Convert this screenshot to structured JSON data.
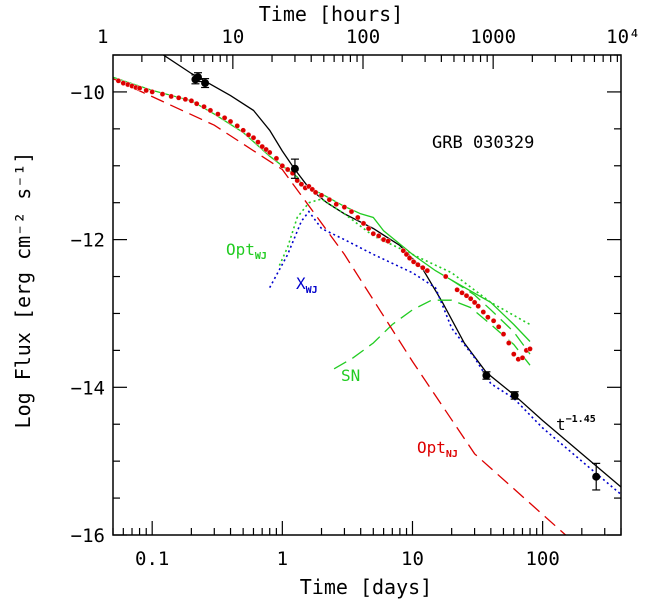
{
  "chart_data": {
    "type": "scatter",
    "annotation_title": "GRB 030329",
    "xlabel": "Time [days]",
    "x2label": "Time [hours]",
    "ylabel": "Log Flux [erg cm⁻² s⁻¹]",
    "x_scale": "log",
    "xlim": [
      0.05,
      400
    ],
    "ylim": [
      -16,
      -9.5
    ],
    "x_tick_labels": [
      {
        "value": 0.1,
        "label": "0.1"
      },
      {
        "value": 1,
        "label": "1"
      },
      {
        "value": 10,
        "label": "10"
      },
      {
        "value": 100,
        "label": "100"
      }
    ],
    "x2_tick_labels": [
      {
        "value": 1,
        "label": "1"
      },
      {
        "value": 10,
        "label": "10"
      },
      {
        "value": 100,
        "label": "100"
      },
      {
        "value": 1000,
        "label": "1000"
      },
      {
        "value": 10000,
        "label": "10⁴"
      }
    ],
    "y_tick_labels": [
      {
        "value": -10,
        "label": "−10"
      },
      {
        "value": -12,
        "label": "−12"
      },
      {
        "value": -14,
        "label": "−14"
      },
      {
        "value": -16,
        "label": "−16"
      }
    ],
    "labels": {
      "opt_wj": {
        "main": "Opt",
        "sub": "WJ",
        "color": "#22cc22"
      },
      "x_wj": {
        "main": "X",
        "sub": "WJ",
        "color": "#0000cc"
      },
      "sn": {
        "main": "SN",
        "sub": "",
        "color": "#22cc22"
      },
      "opt_nj": {
        "main": "Opt",
        "sub": "NJ",
        "color": "#dd0000"
      },
      "power_law": {
        "main": "t",
        "sup": "−1.45",
        "color": "#000000"
      }
    },
    "series": [
      {
        "kind": "xray_points",
        "color": "#000000",
        "points": [
          {
            "x": 0.215,
            "y": -9.83,
            "err": 0.06
          },
          {
            "x": 0.225,
            "y": -9.8,
            "err": 0.06
          },
          {
            "x": 0.255,
            "y": -9.88,
            "err": 0.06
          },
          {
            "x": 1.25,
            "y": -11.04,
            "err": 0.13
          },
          {
            "x": 37,
            "y": -13.84,
            "err": 0.05
          },
          {
            "x": 61,
            "y": -14.11,
            "err": 0.05
          },
          {
            "x": 258,
            "y": -15.21,
            "err": 0.18
          }
        ]
      },
      {
        "kind": "xray_model",
        "color": "#000000",
        "style": "solid",
        "points": [
          [
            0.115,
            -9.47
          ],
          [
            0.2,
            -9.75
          ],
          [
            0.4,
            -10.05
          ],
          [
            0.6,
            -10.25
          ],
          [
            0.8,
            -10.52
          ],
          [
            1.0,
            -10.8
          ],
          [
            1.25,
            -11.05
          ],
          [
            1.6,
            -11.3
          ],
          [
            2.2,
            -11.5
          ],
          [
            3.0,
            -11.65
          ],
          [
            5,
            -11.85
          ],
          [
            8,
            -12.08
          ],
          [
            12,
            -12.4
          ],
          [
            17,
            -12.85
          ],
          [
            25,
            -13.4
          ],
          [
            37,
            -13.8
          ],
          [
            60,
            -14.1
          ],
          [
            100,
            -14.45
          ],
          [
            200,
            -14.9
          ],
          [
            400,
            -15.35
          ]
        ]
      },
      {
        "kind": "optical_model",
        "color": "#22cc22",
        "style": "solid",
        "points": [
          [
            0.05,
            -9.8
          ],
          [
            0.1,
            -9.98
          ],
          [
            0.2,
            -10.12
          ],
          [
            0.3,
            -10.3
          ],
          [
            0.5,
            -10.55
          ],
          [
            0.8,
            -10.87
          ],
          [
            1.0,
            -11.0
          ],
          [
            1.3,
            -11.15
          ],
          [
            1.5,
            -11.32
          ],
          [
            1.6,
            -11.3
          ],
          [
            2.0,
            -11.38
          ],
          [
            3.0,
            -11.55
          ],
          [
            4.0,
            -11.65
          ],
          [
            5,
            -11.7
          ],
          [
            6,
            -11.88
          ],
          [
            10,
            -12.2
          ],
          [
            15,
            -12.42
          ],
          [
            20,
            -12.55
          ],
          [
            40,
            -12.85
          ],
          [
            60,
            -13.15
          ],
          [
            80,
            -13.38
          ]
        ]
      },
      {
        "kind": "optical_points",
        "color": "#dd0000",
        "points": [
          [
            0.055,
            -9.85
          ],
          [
            0.06,
            -9.88
          ],
          [
            0.065,
            -9.9
          ],
          [
            0.07,
            -9.92
          ],
          [
            0.075,
            -9.94
          ],
          [
            0.08,
            -9.95
          ],
          [
            0.09,
            -9.98
          ],
          [
            0.1,
            -10.0
          ],
          [
            0.12,
            -10.03
          ],
          [
            0.14,
            -10.06
          ],
          [
            0.16,
            -10.08
          ],
          [
            0.18,
            -10.1
          ],
          [
            0.2,
            -10.12
          ],
          [
            0.22,
            -10.16
          ],
          [
            0.25,
            -10.2
          ],
          [
            0.28,
            -10.25
          ],
          [
            0.32,
            -10.3
          ],
          [
            0.36,
            -10.35
          ],
          [
            0.4,
            -10.4
          ],
          [
            0.45,
            -10.46
          ],
          [
            0.5,
            -10.52
          ],
          [
            0.55,
            -10.58
          ],
          [
            0.6,
            -10.62
          ],
          [
            0.65,
            -10.68
          ],
          [
            0.7,
            -10.74
          ],
          [
            0.75,
            -10.78
          ],
          [
            0.8,
            -10.82
          ],
          [
            0.9,
            -10.9
          ],
          [
            1.0,
            -11.0
          ],
          [
            1.1,
            -11.05
          ],
          [
            1.2,
            -11.1
          ],
          [
            1.3,
            -11.2
          ],
          [
            1.4,
            -11.25
          ],
          [
            1.5,
            -11.3
          ],
          [
            1.6,
            -11.28
          ],
          [
            1.7,
            -11.32
          ],
          [
            1.8,
            -11.36
          ],
          [
            2.0,
            -11.4
          ],
          [
            2.3,
            -11.46
          ],
          [
            2.6,
            -11.52
          ],
          [
            3.0,
            -11.56
          ],
          [
            3.4,
            -11.62
          ],
          [
            3.8,
            -11.7
          ],
          [
            4.2,
            -11.78
          ],
          [
            4.6,
            -11.85
          ],
          [
            5.0,
            -11.92
          ],
          [
            5.5,
            -11.95
          ],
          [
            6.0,
            -12.0
          ],
          [
            6.5,
            -12.02
          ],
          [
            8.5,
            -12.15
          ],
          [
            9.0,
            -12.2
          ],
          [
            9.5,
            -12.25
          ],
          [
            10.2,
            -12.3
          ],
          [
            11,
            -12.34
          ],
          [
            12,
            -12.38
          ],
          [
            13,
            -12.42
          ],
          [
            18,
            -12.5
          ],
          [
            22,
            -12.68
          ],
          [
            24,
            -12.72
          ],
          [
            26,
            -12.76
          ],
          [
            28,
            -12.8
          ],
          [
            30,
            -12.85
          ],
          [
            32,
            -12.9
          ],
          [
            35,
            -12.98
          ],
          [
            38,
            -13.05
          ],
          [
            42,
            -13.1
          ],
          [
            46,
            -13.18
          ],
          [
            50,
            -13.28
          ],
          [
            55,
            -13.4
          ],
          [
            60,
            -13.55
          ],
          [
            65,
            -13.62
          ],
          [
            70,
            -13.6
          ],
          [
            75,
            -13.5
          ],
          [
            80,
            -13.48
          ]
        ]
      },
      {
        "kind": "optical_model_dashed",
        "color": "#22cc22",
        "style": "dashed",
        "points": [
          [
            20,
            -12.55
          ],
          [
            30,
            -12.75
          ],
          [
            40,
            -12.95
          ],
          [
            60,
            -13.25
          ],
          [
            80,
            -13.55
          ]
        ]
      },
      {
        "kind": "sn_component",
        "color": "#22cc22",
        "style": "dashed",
        "points": [
          [
            2.5,
            -13.75
          ],
          [
            3.5,
            -13.6
          ],
          [
            5,
            -13.4
          ],
          [
            7,
            -13.15
          ],
          [
            10,
            -12.95
          ],
          [
            14,
            -12.82
          ],
          [
            20,
            -12.82
          ],
          [
            28,
            -12.92
          ],
          [
            40,
            -13.15
          ],
          [
            60,
            -13.42
          ],
          [
            80,
            -13.7
          ]
        ]
      },
      {
        "kind": "opt_wj",
        "color": "#22cc22",
        "style": "dotted",
        "points": [
          [
            0.95,
            -12.35
          ],
          [
            1.1,
            -12.1
          ],
          [
            1.3,
            -11.7
          ],
          [
            1.6,
            -11.5
          ],
          [
            2.0,
            -11.45
          ],
          [
            3.0,
            -11.65
          ],
          [
            5.0,
            -11.95
          ],
          [
            10,
            -12.2
          ],
          [
            20,
            -12.45
          ],
          [
            40,
            -12.85
          ],
          [
            80,
            -13.15
          ]
        ]
      },
      {
        "kind": "x_wj",
        "color": "#0000cc",
        "style": "dotted",
        "points": [
          [
            0.8,
            -12.65
          ],
          [
            1.1,
            -12.2
          ],
          [
            1.4,
            -11.75
          ],
          [
            1.6,
            -11.62
          ],
          [
            2.0,
            -11.85
          ],
          [
            3.0,
            -12.0
          ],
          [
            5.0,
            -12.2
          ],
          [
            10,
            -12.45
          ],
          [
            15,
            -12.65
          ],
          [
            20,
            -13.2
          ],
          [
            30,
            -13.6
          ],
          [
            40,
            -13.95
          ],
          [
            60,
            -14.15
          ],
          [
            100,
            -14.55
          ],
          [
            200,
            -15.0
          ],
          [
            400,
            -15.45
          ]
        ]
      },
      {
        "kind": "opt_nj",
        "color": "#dd0000",
        "style": "dashed",
        "points": [
          [
            0.05,
            -9.82
          ],
          [
            0.3,
            -10.45
          ],
          [
            1,
            -11.05
          ],
          [
            3,
            -12.2
          ],
          [
            10,
            -13.65
          ],
          [
            30,
            -14.9
          ],
          [
            150,
            -16.0
          ]
        ]
      }
    ]
  }
}
